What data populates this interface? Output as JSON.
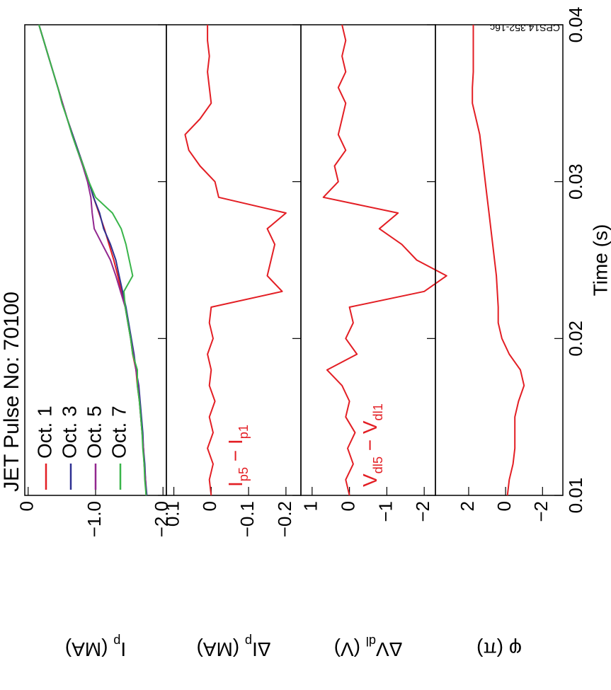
{
  "chart_data": [
    {
      "type": "line",
      "title": "JET Pulse No: 70100",
      "ylabel": [
        "I",
        "p",
        " (MA)"
      ],
      "x": [
        0.01,
        0.011,
        0.012,
        0.013,
        0.014,
        0.015,
        0.016,
        0.017,
        0.018,
        0.019,
        0.02,
        0.021,
        0.022,
        0.023,
        0.024,
        0.025,
        0.026,
        0.027,
        0.028,
        0.029,
        0.03,
        0.031,
        0.032,
        0.033,
        0.034,
        0.035,
        0.036,
        0.037,
        0.038,
        0.039,
        0.04
      ],
      "xlim": [
        0.01,
        0.04
      ],
      "ylim": [
        -2.05,
        0.05
      ],
      "yticks": [
        0,
        {
          "value": -1,
          "label": "−1.0"
        },
        {
          "value": -2,
          "label": "−2.0"
        }
      ],
      "series": [
        {
          "name": "Oct. 1",
          "color": "#e31e24",
          "values": [
            -1.75,
            -1.74,
            -1.72,
            -1.71,
            -1.69,
            -1.67,
            -1.65,
            -1.62,
            -1.6,
            -1.55,
            -1.52,
            -1.48,
            -1.44,
            -1.38,
            -1.33,
            -1.27,
            -1.2,
            -1.13,
            -1.05,
            -0.97,
            -0.9,
            -0.82,
            -0.74,
            -0.66,
            -0.58,
            -0.51,
            -0.44,
            -0.37,
            -0.3,
            -0.23,
            -0.16
          ]
        },
        {
          "name": "Oct. 3",
          "color": "#2e3192",
          "values": [
            -1.76,
            -1.74,
            -1.73,
            -1.71,
            -1.7,
            -1.68,
            -1.66,
            -1.64,
            -1.6,
            -1.57,
            -1.53,
            -1.49,
            -1.45,
            -1.4,
            -1.35,
            -1.3,
            -1.22,
            -1.12,
            -1.06,
            -0.97,
            -0.9,
            -0.82,
            -0.74,
            -0.66,
            -0.58,
            -0.51,
            -0.44,
            -0.37,
            -0.3,
            -0.23,
            -0.16
          ]
        },
        {
          "name": "Oct. 5",
          "color": "#92278f",
          "values": [
            -1.75,
            -1.74,
            -1.72,
            -1.71,
            -1.69,
            -1.67,
            -1.65,
            -1.63,
            -1.6,
            -1.56,
            -1.52,
            -1.48,
            -1.44,
            -1.37,
            -1.3,
            -1.22,
            -1.1,
            -0.98,
            -0.95,
            -0.93,
            -0.88,
            -0.81,
            -0.73,
            -0.65,
            -0.58,
            -0.51,
            -0.44,
            -0.37,
            -0.3,
            -0.23,
            -0.16
          ]
        },
        {
          "name": "Oct. 7",
          "color": "#39b54a",
          "values": [
            -1.75,
            -1.73,
            -1.72,
            -1.7,
            -1.69,
            -1.67,
            -1.65,
            -1.62,
            -1.62,
            -1.55,
            -1.52,
            -1.48,
            -1.44,
            -1.42,
            -1.55,
            -1.5,
            -1.45,
            -1.38,
            -1.25,
            -1.0,
            -0.9,
            -0.82,
            -0.73,
            -0.65,
            -0.58,
            -0.5,
            -0.44,
            -0.37,
            -0.3,
            -0.23,
            -0.16
          ]
        }
      ]
    },
    {
      "type": "line",
      "ylabel": [
        "ΔI",
        "p",
        " (MA)"
      ],
      "annotation": [
        "I",
        "p5",
        " − I",
        "p1"
      ],
      "x": [
        0.01,
        0.011,
        0.012,
        0.013,
        0.014,
        0.015,
        0.016,
        0.017,
        0.018,
        0.019,
        0.02,
        0.021,
        0.022,
        0.023,
        0.024,
        0.025,
        0.026,
        0.027,
        0.028,
        0.029,
        0.03,
        0.031,
        0.032,
        0.033,
        0.034,
        0.035,
        0.036,
        0.037,
        0.038,
        0.039,
        0.04
      ],
      "xlim": [
        0.01,
        0.04
      ],
      "ylim": [
        -0.24,
        0.12
      ],
      "yticks": [
        0.1,
        0,
        {
          "value": -0.1,
          "label": "−0.1"
        },
        {
          "value": -0.2,
          "label": "−0.2"
        }
      ],
      "series": [
        {
          "color": "#e31e24",
          "values": [
            0.0,
            0.005,
            -0.005,
            0.01,
            -0.005,
            0.005,
            -0.01,
            0.005,
            0.0,
            0.01,
            -0.005,
            0.005,
            0.0,
            -0.19,
            -0.15,
            -0.16,
            -0.17,
            -0.15,
            -0.2,
            -0.02,
            -0.01,
            0.03,
            0.06,
            0.07,
            0.03,
            0.0,
            0.005,
            0.01,
            0.005,
            0.01,
            0.01
          ]
        }
      ]
    },
    {
      "type": "line",
      "ylabel": [
        "ΔV",
        "dl",
        " (V)"
      ],
      "annotation": [
        "V",
        "dl5",
        " − V",
        "dl1"
      ],
      "x": [
        0.01,
        0.011,
        0.012,
        0.013,
        0.014,
        0.015,
        0.016,
        0.017,
        0.018,
        0.019,
        0.02,
        0.021,
        0.022,
        0.023,
        0.024,
        0.025,
        0.026,
        0.027,
        0.028,
        0.029,
        0.03,
        0.031,
        0.032,
        0.033,
        0.034,
        0.035,
        0.036,
        0.037,
        0.038,
        0.039,
        0.04
      ],
      "xlim": [
        0.01,
        0.04
      ],
      "ylim": [
        -2.3,
        1.3
      ],
      "yticks": [
        1,
        0,
        {
          "value": -1,
          "label": "−1"
        },
        {
          "value": -2,
          "label": "−2"
        }
      ],
      "series": [
        {
          "color": "#e31e24",
          "values": [
            0.0,
            0.1,
            -0.1,
            0.05,
            -0.15,
            0.1,
            0.0,
            0.2,
            0.6,
            -0.2,
            0.1,
            -0.1,
            0.0,
            -2.0,
            -2.6,
            -1.8,
            -1.4,
            -0.8,
            -1.3,
            0.7,
            0.3,
            0.4,
            0.1,
            0.3,
            0.2,
            0.1,
            0.3,
            0.1,
            0.2,
            0.1,
            0.2
          ]
        }
      ]
    },
    {
      "type": "line",
      "ylabel": [
        "φ (π)"
      ],
      "xlabel": "Time (s)",
      "note": "CPS14.352-16c",
      "x": [
        0.01,
        0.011,
        0.012,
        0.013,
        0.014,
        0.015,
        0.016,
        0.017,
        0.018,
        0.019,
        0.02,
        0.021,
        0.022,
        0.023,
        0.024,
        0.025,
        0.026,
        0.027,
        0.028,
        0.029,
        0.03,
        0.031,
        0.032,
        0.033,
        0.034,
        0.035,
        0.036,
        0.037,
        0.038,
        0.039,
        0.04
      ],
      "xlim": [
        0.01,
        0.04
      ],
      "xticks": [
        0.01,
        0.02,
        0.03,
        0.04
      ],
      "ylim": [
        -3.1,
        3.8
      ],
      "yticks": [
        2,
        0,
        {
          "value": -2,
          "label": "−2"
        }
      ],
      "series": [
        {
          "color": "#e31e24",
          "values": [
            -0.1,
            -0.2,
            -0.4,
            -0.5,
            -0.5,
            -0.5,
            -0.7,
            -1.0,
            -0.8,
            -0.2,
            0.2,
            0.4,
            0.4,
            0.45,
            0.5,
            0.6,
            0.7,
            0.8,
            0.9,
            1.0,
            1.1,
            1.2,
            1.3,
            1.4,
            1.6,
            1.8,
            1.8,
            1.75,
            1.75,
            1.75,
            1.75
          ]
        }
      ]
    }
  ]
}
